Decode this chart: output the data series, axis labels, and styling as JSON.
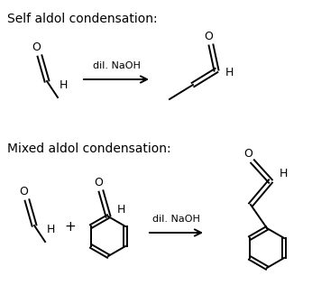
{
  "title_self": "Self aldol condensation:",
  "title_mixed": "Mixed aldol condensation:",
  "reagent": "dil. NaOH",
  "bg_color": "#ffffff",
  "text_color": "#000000",
  "font_size_title": 10,
  "font_size_atom": 9,
  "font_size_reagent": 8,
  "font_size_plus": 11,
  "line_width": 1.4
}
